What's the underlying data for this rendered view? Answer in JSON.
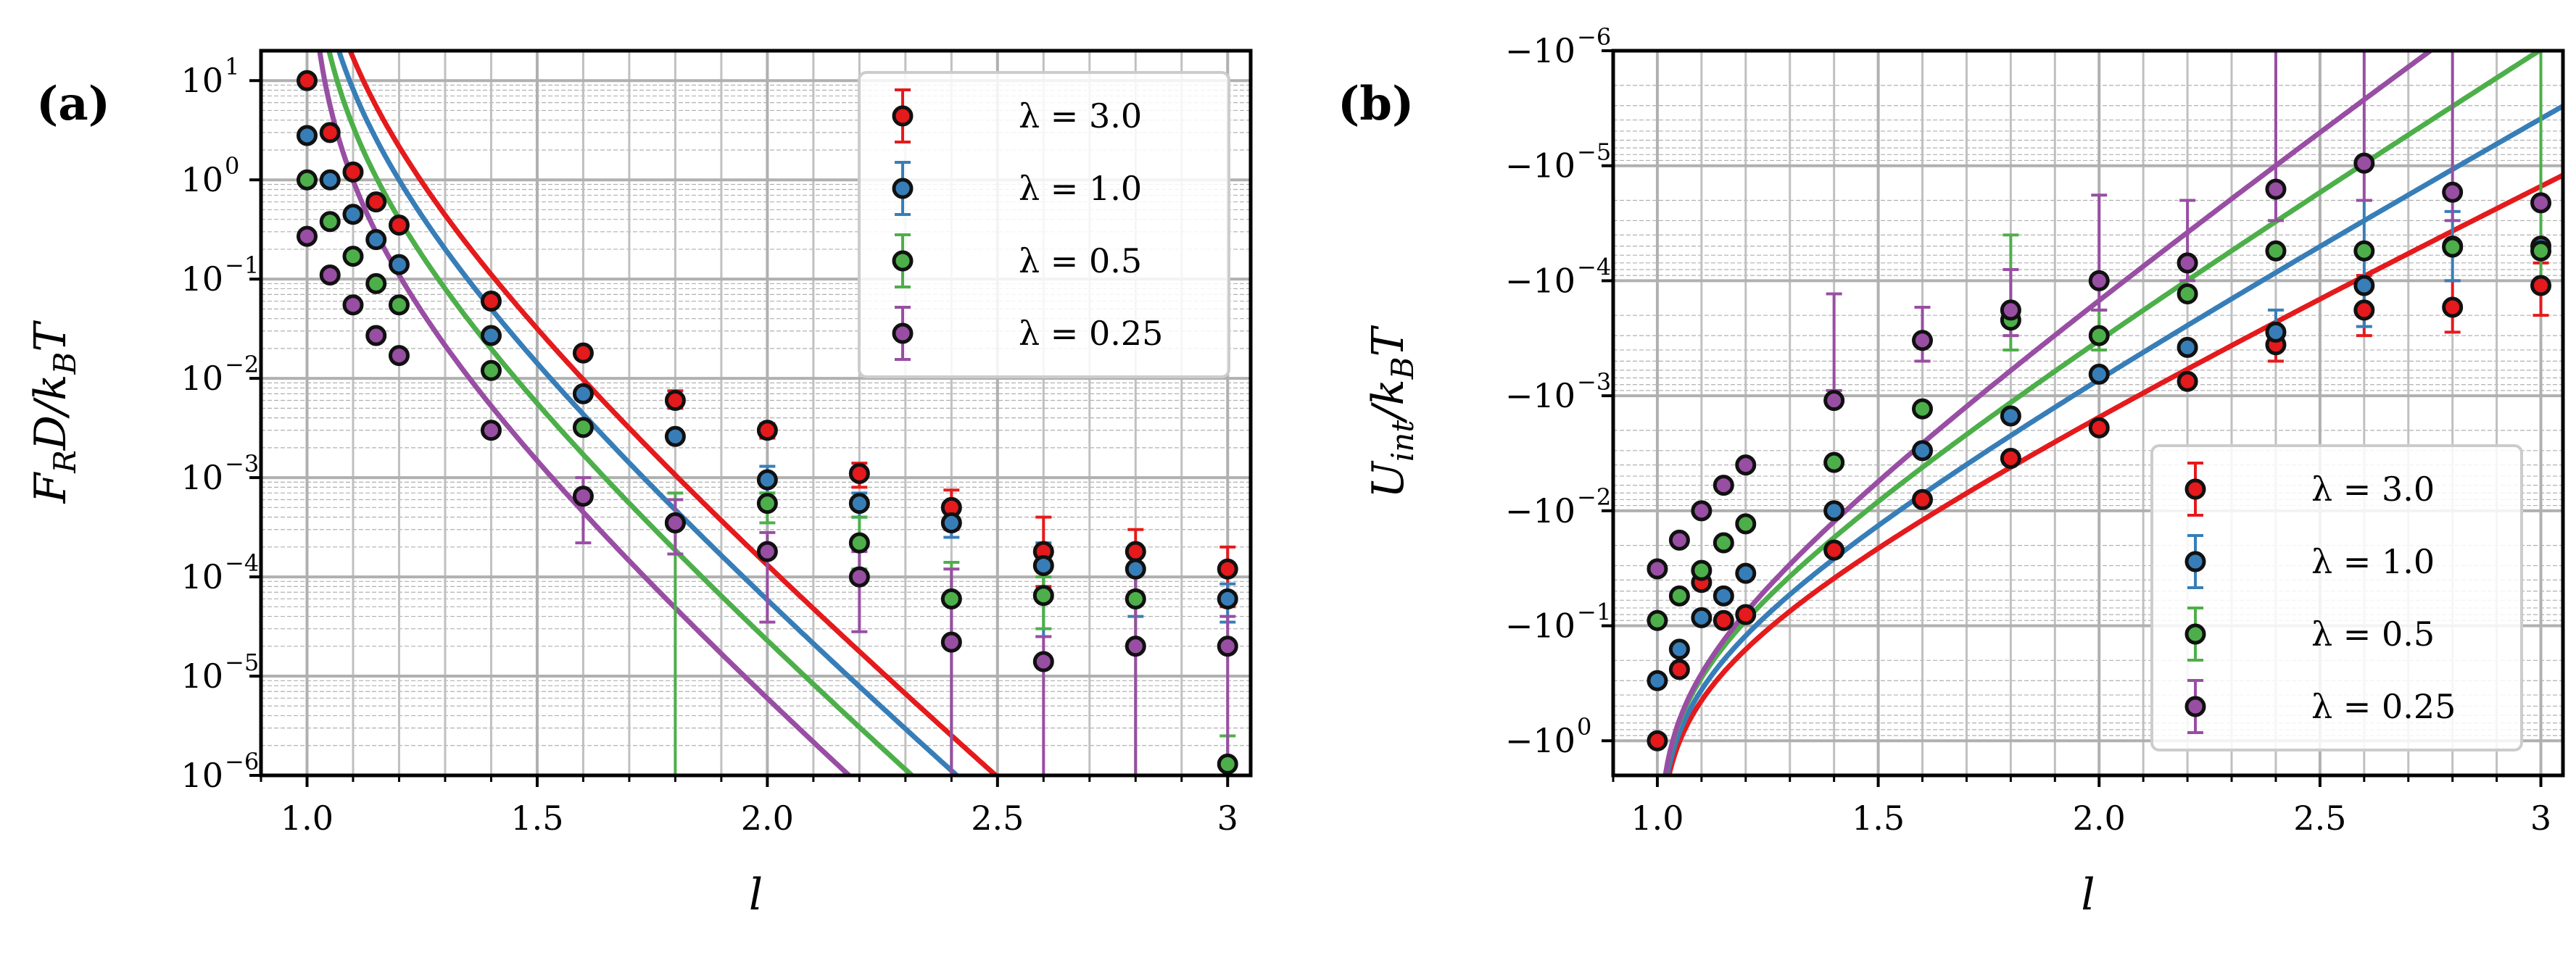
{
  "chart_data": [
    {
      "type": "scatter",
      "panel_label": "(a)",
      "title": "",
      "xlabel": "l",
      "ylabel": "F_R D / k_B T",
      "ylabel_parts": {
        "main": "F",
        "sub1": "R",
        "mid": "D/k",
        "sub2": "B",
        "end": "T"
      },
      "xscale": "linear",
      "yscale": "log",
      "xlim": [
        0.9,
        3.05
      ],
      "ylim": [
        1e-06,
        20
      ],
      "xticks": [
        1.0,
        1.5,
        2.0,
        2.5,
        3.0
      ],
      "xtick_labels": [
        "1.0",
        "1.5",
        "2.0",
        "2.5",
        "3"
      ],
      "yticks": [
        -6,
        -5,
        -4,
        -3,
        -2,
        -1,
        0,
        1
      ],
      "ytick_labels": [
        "10",
        "10",
        "10",
        "10",
        "10",
        "10",
        "10",
        "10"
      ],
      "ytick_exponents": [
        "−6",
        "−5",
        "−4",
        "−3",
        "−2",
        "−1",
        "0",
        "1"
      ],
      "grid": true,
      "legend_position": "top-right",
      "fit_curves": [
        {
          "name": "λ = 3.0",
          "A": 0.5,
          "p": 2.05,
          "c": 0.98
        },
        {
          "name": "λ = 1.0",
          "A": 0.22,
          "p": 2.05,
          "c": 0.985
        },
        {
          "name": "λ = 0.5",
          "A": 0.085,
          "p": 2.05,
          "c": 0.99
        },
        {
          "name": "λ = 0.25",
          "A": 0.022,
          "p": 2.05,
          "c": 0.995
        }
      ],
      "series": [
        {
          "name": "λ = 3.0",
          "label_text": "λ = 3.0",
          "color": "#e41a1c",
          "x": [
            1.0,
            1.05,
            1.1,
            1.15,
            1.2,
            1.4,
            1.6,
            1.8,
            2.0,
            2.2,
            2.4,
            2.6,
            2.8,
            3.0
          ],
          "y": [
            10,
            3,
            1.2,
            0.6,
            0.35,
            0.06,
            0.018,
            0.006,
            0.003,
            0.0011,
            0.0005,
            0.00018,
            0.00018,
            0.00012
          ],
          "err_lo": [
            null,
            null,
            null,
            null,
            null,
            null,
            null,
            0.005,
            0.0025,
            0.0008,
            0.0003,
            8e-05,
            7e-05,
            5e-05
          ],
          "err_hi": [
            null,
            null,
            null,
            null,
            null,
            null,
            null,
            0.0075,
            0.0035,
            0.0014,
            0.00075,
            0.0004,
            0.0003,
            0.0002
          ]
        },
        {
          "name": "λ = 1.0",
          "label_text": "λ = 1.0",
          "color": "#377eb8",
          "x": [
            1.0,
            1.05,
            1.1,
            1.15,
            1.2,
            1.4,
            1.6,
            1.8,
            2.0,
            2.2,
            2.4,
            2.6,
            2.8,
            3.0
          ],
          "y": [
            2.8,
            1.0,
            0.45,
            0.25,
            0.14,
            0.027,
            0.007,
            0.0026,
            0.00095,
            0.00055,
            0.00035,
            0.00013,
            0.00012,
            6e-05
          ],
          "err_lo": [
            null,
            null,
            null,
            null,
            null,
            null,
            null,
            null,
            0.0007,
            0.0004,
            0.00025,
            2.5e-05,
            4e-05,
            3.5e-05
          ],
          "err_hi": [
            null,
            null,
            null,
            null,
            null,
            null,
            null,
            null,
            0.0013,
            0.0007,
            0.0005,
            0.00022,
            0.0002,
            8.5e-05
          ]
        },
        {
          "name": "λ = 0.5",
          "label_text": "λ = 0.5",
          "color": "#4daf4a",
          "x": [
            1.0,
            1.05,
            1.1,
            1.15,
            1.2,
            1.4,
            1.6,
            1.8,
            2.0,
            2.2,
            2.4,
            2.6,
            2.8,
            3.0
          ],
          "y": [
            1.0,
            0.38,
            0.17,
            0.09,
            0.055,
            0.012,
            0.0032,
            0.00035,
            0.00055,
            0.00022,
            6e-05,
            6.5e-05,
            6e-05,
            1.3e-06
          ],
          "err_lo": [
            null,
            null,
            null,
            null,
            null,
            null,
            null,
            1e-07,
            0.00035,
            0.00012,
            1e-07,
            3e-05,
            1e-07,
            1e-07
          ],
          "err_hi": [
            null,
            null,
            null,
            null,
            null,
            null,
            null,
            0.0007,
            0.0007,
            0.0004,
            0.00014,
            0.0001,
            0.00011,
            2.5e-06
          ]
        },
        {
          "name": "λ = 0.25",
          "label_text": "λ = 0.25",
          "color": "#984ea3",
          "x": [
            1.0,
            1.05,
            1.1,
            1.15,
            1.2,
            1.4,
            1.6,
            1.8,
            2.0,
            2.2,
            2.4,
            2.6,
            2.8,
            3.0
          ],
          "y": [
            0.27,
            0.11,
            0.055,
            0.027,
            0.017,
            0.003,
            0.00065,
            0.00035,
            0.00018,
            0.0001,
            2.2e-05,
            1.4e-05,
            2e-05,
            2e-05
          ],
          "err_lo": [
            null,
            null,
            null,
            null,
            null,
            null,
            0.00022,
            0.00017,
            3.5e-05,
            2.8e-05,
            1e-07,
            1e-07,
            1e-07,
            1e-07
          ],
          "err_hi": [
            null,
            null,
            null,
            null,
            null,
            0.0037,
            0.001,
            0.0006,
            0.00028,
            0.00018,
            0.00012,
            2.5e-05,
            0.00011,
            4e-05
          ]
        }
      ]
    },
    {
      "type": "scatter",
      "panel_label": "(b)",
      "title": "",
      "xlabel": "l",
      "ylabel": "U_int / k_B T",
      "ylabel_parts": {
        "main": "U",
        "sub1": "int",
        "mid": "/k",
        "sub2": "B",
        "end": "T"
      },
      "xscale": "linear",
      "yscale": "symlog (negative, log magnitude)",
      "xlim": [
        0.9,
        3.05
      ],
      "ylim_magnitude": [
        2,
        1e-06
      ],
      "xticks": [
        1.0,
        1.5,
        2.0,
        2.5,
        3.0
      ],
      "xtick_labels": [
        "1.0",
        "1.5",
        "2.0",
        "2.5",
        "3"
      ],
      "yticks_magnitude": [
        -6,
        -5,
        -4,
        -3,
        -2,
        -1,
        0
      ],
      "ytick_labels": [
        "−10",
        "−10",
        "−10",
        "−10",
        "−10",
        "−10",
        "−10"
      ],
      "ytick_exponents": [
        "−6",
        "−5",
        "−4",
        "−3",
        "−2",
        "−1",
        "0"
      ],
      "grid": true,
      "legend_position": "bottom-right",
      "fit_curves": [
        {
          "name": "λ = 3.0",
          "B": 1.4,
          "p": 0.9,
          "c": 1.0,
          "r": 4.0
        },
        {
          "name": "λ = 1.0",
          "B": 1.2,
          "p": 0.9,
          "c": 1.0,
          "r": 4.6
        },
        {
          "name": "λ = 0.5",
          "B": 1.0,
          "p": 0.9,
          "c": 1.0,
          "r": 5.2
        },
        {
          "name": "λ = 0.25",
          "B": 1.0,
          "p": 0.9,
          "c": 1.0,
          "r": 6.0
        }
      ],
      "series": [
        {
          "name": "λ = 3.0",
          "label_text": "λ = 3.0",
          "color": "#e41a1c",
          "x": [
            1.0,
            1.05,
            1.1,
            1.15,
            1.2,
            1.4,
            1.6,
            1.8,
            2.0,
            2.2,
            2.4,
            2.6,
            2.8,
            3.0
          ],
          "y_mag": [
            1.0,
            0.24,
            0.042,
            0.09,
            0.08,
            0.022,
            0.008,
            0.0035,
            0.0019,
            0.00075,
            0.00036,
            0.00018,
            0.00017,
            0.00011
          ],
          "err_lo": [
            null,
            null,
            null,
            null,
            null,
            null,
            null,
            null,
            null,
            null,
            0.00025,
            9e-05,
            0.0001,
            7e-05
          ],
          "err_hi": [
            null,
            null,
            null,
            null,
            null,
            null,
            null,
            null,
            null,
            null,
            0.0005,
            0.0003,
            0.00028,
            0.0002
          ]
        },
        {
          "name": "λ = 1.0",
          "label_text": "λ = 1.0",
          "color": "#377eb8",
          "x": [
            1.0,
            1.05,
            1.1,
            1.15,
            1.2,
            1.4,
            1.6,
            1.8,
            2.0,
            2.2,
            2.4,
            2.6,
            2.8,
            3.0
          ],
          "y_mag": [
            0.3,
            0.16,
            0.085,
            0.055,
            0.035,
            0.01,
            0.003,
            0.0015,
            0.00065,
            0.00038,
            0.00028,
            0.00011,
            5e-05,
            5e-05
          ],
          "err_lo": [
            null,
            null,
            null,
            null,
            null,
            null,
            null,
            null,
            null,
            null,
            0.00018,
            2e-05,
            2.5e-05,
            null
          ],
          "err_hi": [
            null,
            null,
            null,
            null,
            null,
            null,
            null,
            null,
            null,
            null,
            0.0004,
            0.00025,
            0.0001,
            null
          ]
        },
        {
          "name": "λ = 0.5",
          "label_text": "λ = 0.5",
          "color": "#4daf4a",
          "x": [
            1.0,
            1.05,
            1.1,
            1.15,
            1.2,
            1.4,
            1.6,
            1.8,
            2.0,
            2.2,
            2.4,
            2.6,
            2.8,
            3.0
          ],
          "y_mag": [
            0.09,
            0.055,
            0.033,
            0.019,
            0.013,
            0.0038,
            0.0013,
            0.00022,
            0.0003,
            0.00013,
            5.5e-05,
            5.5e-05,
            5.1e-05,
            5.5e-05
          ],
          "err_lo": [
            null,
            null,
            null,
            null,
            null,
            null,
            null,
            4e-05,
            0.00018,
            null,
            null,
            null,
            null,
            1e-06
          ],
          "err_hi": [
            null,
            null,
            null,
            null,
            null,
            null,
            null,
            0.0004,
            0.0004,
            null,
            null,
            null,
            null,
            0.0001
          ]
        },
        {
          "name": "λ = 0.25",
          "label_text": "λ = 0.25",
          "color": "#984ea3",
          "x": [
            1.0,
            1.05,
            1.1,
            1.15,
            1.2,
            1.4,
            1.6,
            1.8,
            2.0,
            2.2,
            2.4,
            2.6,
            2.8,
            3.0
          ],
          "y_mag": [
            0.032,
            0.018,
            0.01,
            0.006,
            0.004,
            0.0011,
            0.00033,
            0.00018,
            0.0001,
            7e-05,
            1.6e-05,
            9.5e-06,
            1.7e-05,
            2.1e-05
          ],
          "err_lo": [
            null,
            null,
            null,
            null,
            null,
            0.0009,
            0.00017,
            8e-05,
            1.8e-05,
            2e-05,
            1e-06,
            1e-06,
            1e-06,
            null
          ],
          "err_hi": [
            null,
            null,
            null,
            null,
            null,
            0.00013,
            0.0005,
            0.0003,
            0.00018,
            0.0001,
            3e-05,
            2e-05,
            3e-05,
            null
          ]
        }
      ]
    }
  ]
}
